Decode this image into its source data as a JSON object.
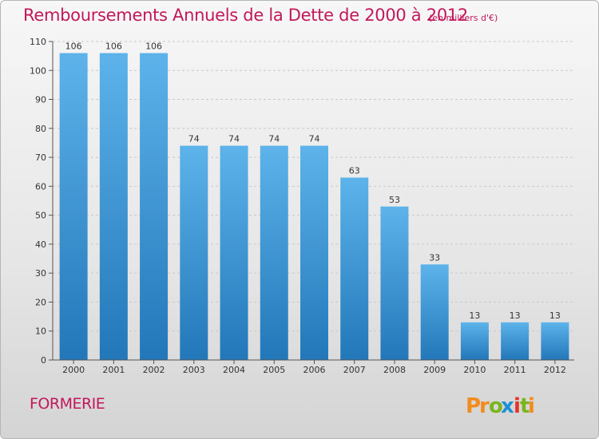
{
  "header": {
    "title": "Remboursements Annuels de la Dette de 2000 à 2012",
    "unit": "(en milliers d'€)"
  },
  "footer": {
    "commune": "FORMERIE",
    "brand": "Proxiti"
  },
  "colors": {
    "title": "#c2185b",
    "bar_light": "#5db3ea",
    "bar_dark": "#2277b9",
    "brand_letters": [
      "#f28c1e",
      "#f28c1e",
      "#7ab51d",
      "#1e90d6",
      "#e6332a",
      "#7ab51d",
      "#f28c1e"
    ]
  },
  "chart_data": {
    "type": "bar",
    "title": "Remboursements Annuels de la Dette de 2000 à 2012",
    "unit": "(en milliers d'€)",
    "categories": [
      "2000",
      "2001",
      "2002",
      "2003",
      "2004",
      "2005",
      "2006",
      "2007",
      "2008",
      "2009",
      "2010",
      "2011",
      "2012"
    ],
    "values": [
      106,
      106,
      106,
      74,
      74,
      74,
      74,
      63,
      53,
      33,
      13,
      13,
      13
    ],
    "ylim": [
      0,
      110
    ],
    "yticks": [
      0,
      10,
      20,
      30,
      40,
      50,
      60,
      70,
      80,
      90,
      100,
      110
    ],
    "grid": true,
    "data_labels": true
  }
}
